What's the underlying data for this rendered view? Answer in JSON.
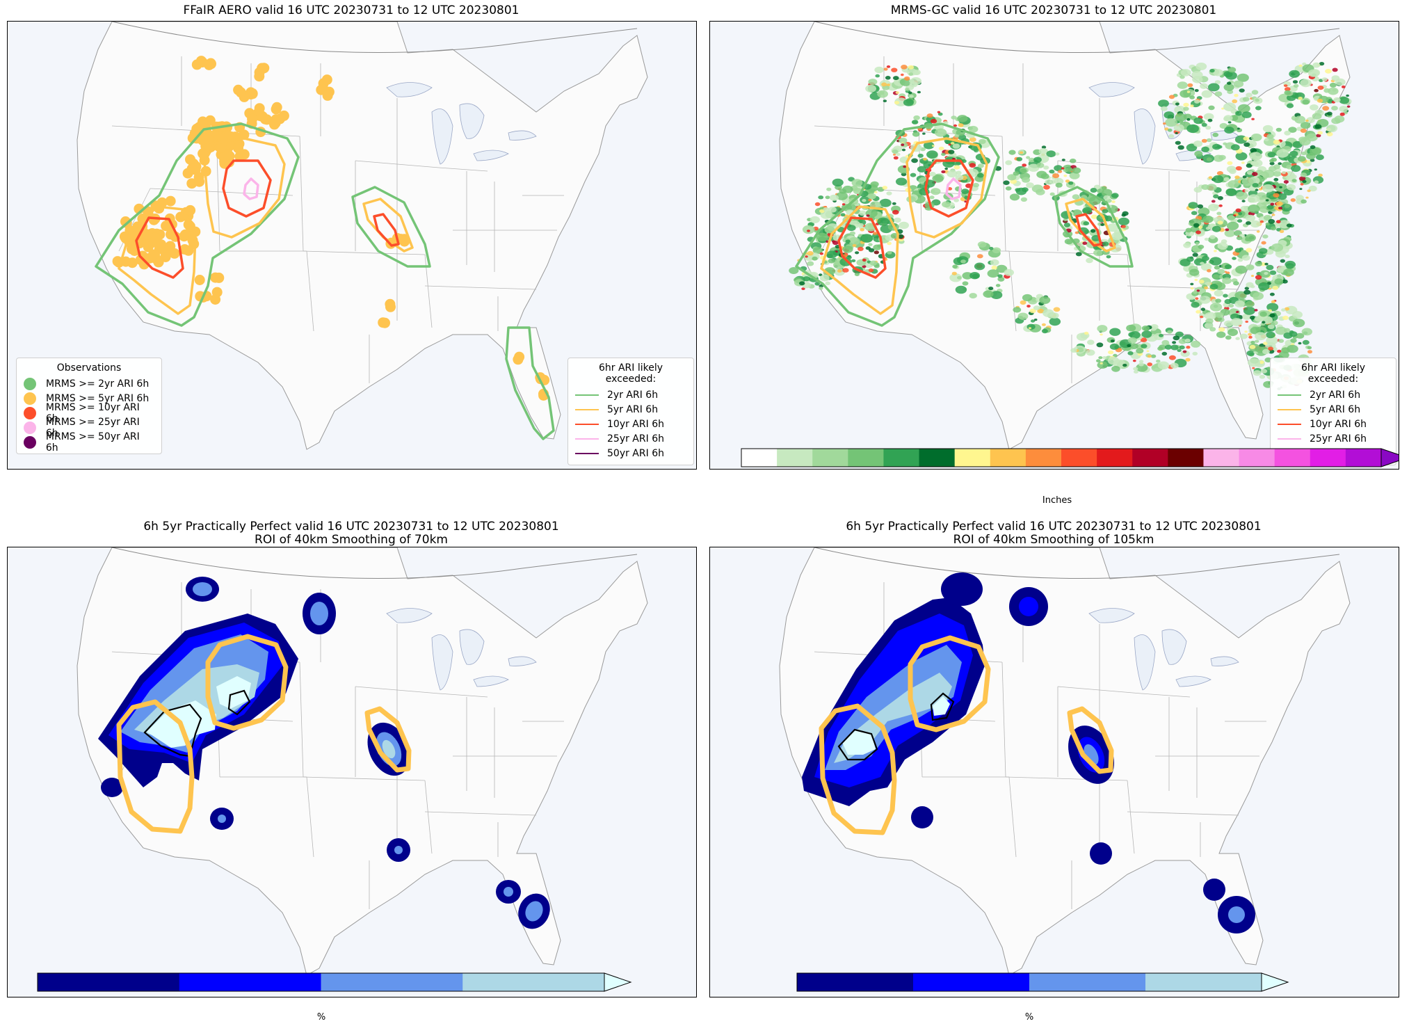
{
  "panels": [
    {
      "title": "FFaIR AERO valid 16 UTC 20230731 to 12 UTC 20230801"
    },
    {
      "title": "MRMS-GC valid 16 UTC 20230731 to 12 UTC 20230801"
    },
    {
      "title": "6h 5yr Practically Perfect valid 16 UTC 20230731 to 12 UTC 20230801\nROI of 40km Smoothing of 70km"
    },
    {
      "title": "6h 5yr Practically Perfect valid 16 UTC 20230731 to 12 UTC 20230801\nROI of 40km Smoothing of 105km"
    }
  ],
  "obs_legend": {
    "title": "Observations",
    "items": [
      {
        "label": "MRMS >= 2yr ARI 6h",
        "color": "#74c476"
      },
      {
        "label": "MRMS >= 5yr ARI 6h",
        "color": "#fec44f"
      },
      {
        "label": "MRMS >= 10yr ARI 6h",
        "color": "#fc4e2a"
      },
      {
        "label": "MRMS >= 25yr ARI 6h",
        "color": "#fbb4e9"
      },
      {
        "label": "MRMS >= 50yr ARI 6h",
        "color": "#6a0060"
      }
    ]
  },
  "ari_legend": {
    "title": "6hr ARI likely exceeded:",
    "items": [
      {
        "label": "2yr ARI 6h",
        "color": "#74c476"
      },
      {
        "label": "5yr ARI 6h",
        "color": "#fec44f"
      },
      {
        "label": "10yr ARI 6h",
        "color": "#fc4e2a"
      },
      {
        "label": "25yr ARI 6h",
        "color": "#fbb4e9"
      },
      {
        "label": "50yr ARI 6h",
        "color": "#6a0060"
      }
    ]
  },
  "precip_colorbar": {
    "label": "Inches",
    "ticks": [
      "0.0",
      "0.01",
      "0.1",
      "0.25",
      "0.5",
      "0.75",
      "1.0",
      "1.25",
      "1.5",
      "1.75",
      "2.0",
      "2.5",
      "3.0",
      "4.0",
      "5.0",
      "7.0",
      "10.0",
      "15.0",
      "20.0"
    ],
    "colors": [
      "#ffffff",
      "#c7e9c0",
      "#a1d99b",
      "#74c476",
      "#31a354",
      "#006d2c",
      "#fff68f",
      "#fec44f",
      "#fd8d3c",
      "#fc4e2a",
      "#e31a1c",
      "#b10026",
      "#6b0000",
      "#fbb4e9",
      "#f78ae6",
      "#f452e0",
      "#e21ee6",
      "#b20ed6"
    ],
    "extend_color": "#8a08c4"
  },
  "prob_colorbar": {
    "label": "%",
    "ticks": [
      "5",
      "15",
      "25",
      "40",
      "70"
    ],
    "colors": [
      "#00008b",
      "#0000ff",
      "#6495ed",
      "#add8e6"
    ],
    "extend_color": "#e0ffff"
  }
}
